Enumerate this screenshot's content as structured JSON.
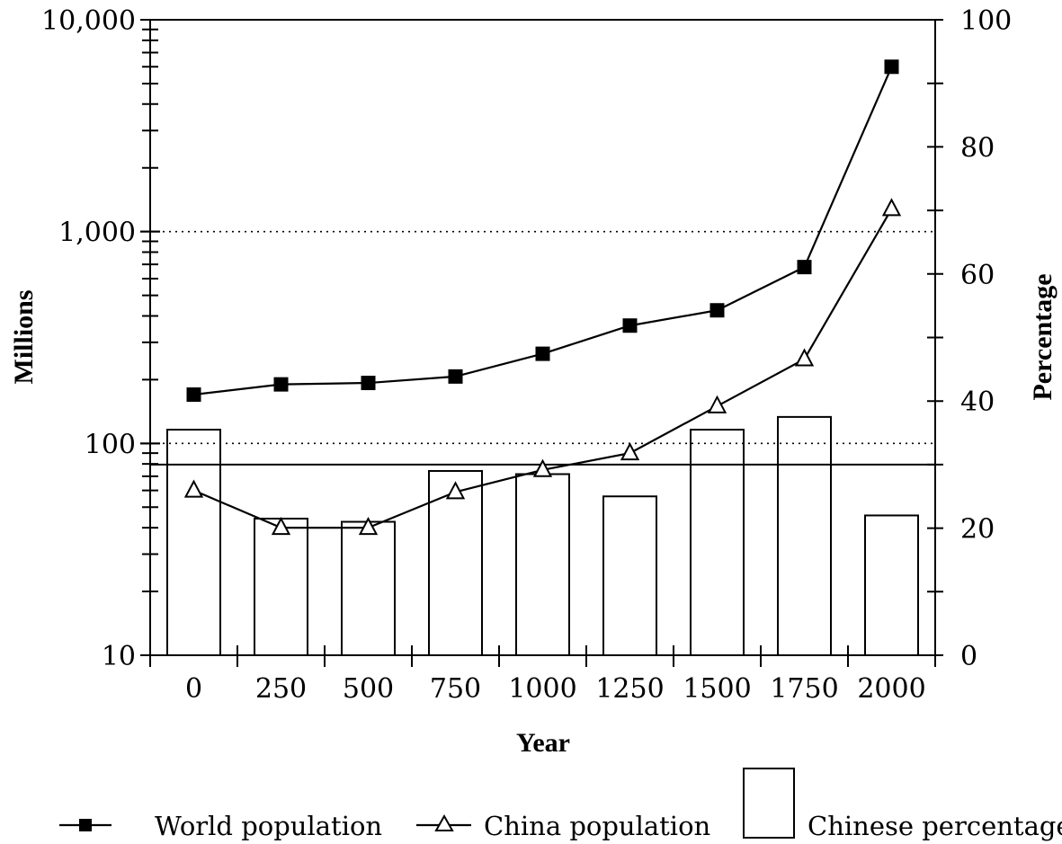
{
  "chart_data": {
    "type": "bar",
    "title": "",
    "xlabel": "Year",
    "ylabel_left": "Millions",
    "ylabel_right": "Percentage",
    "categories": [
      "0",
      "250",
      "500",
      "750",
      "1000",
      "1250",
      "1500",
      "1750",
      "2000"
    ],
    "left_axis": {
      "scale": "log",
      "ylim": [
        10,
        10000
      ],
      "tick_labels": [
        "10",
        "100",
        "1,000",
        "10,000"
      ]
    },
    "right_axis": {
      "scale": "linear",
      "ylim": [
        0,
        100
      ],
      "tick_labels": [
        "0",
        "20",
        "40",
        "60",
        "80",
        "100"
      ]
    },
    "series": [
      {
        "name": "World population",
        "type": "line",
        "axis": "left",
        "marker": "filled-square",
        "color": "#000000",
        "values": [
          170,
          190,
          193,
          207,
          265,
          360,
          425,
          680,
          6000
        ]
      },
      {
        "name": "China population",
        "type": "line",
        "axis": "left",
        "marker": "open-triangle",
        "color": "#000000",
        "values": [
          60,
          40,
          40,
          59,
          75,
          90,
          150,
          250,
          1280
        ]
      },
      {
        "name": "Chinese percentages",
        "type": "bar",
        "axis": "right",
        "color": "#ffffff",
        "values": [
          35.5,
          21.5,
          21,
          29,
          28.5,
          25,
          35.5,
          37.5,
          22
        ]
      }
    ],
    "reference_lines": {
      "dotted_left_values": [
        1000,
        100
      ],
      "solid_right_value": 30
    },
    "grid": false,
    "legend_position": "bottom"
  }
}
